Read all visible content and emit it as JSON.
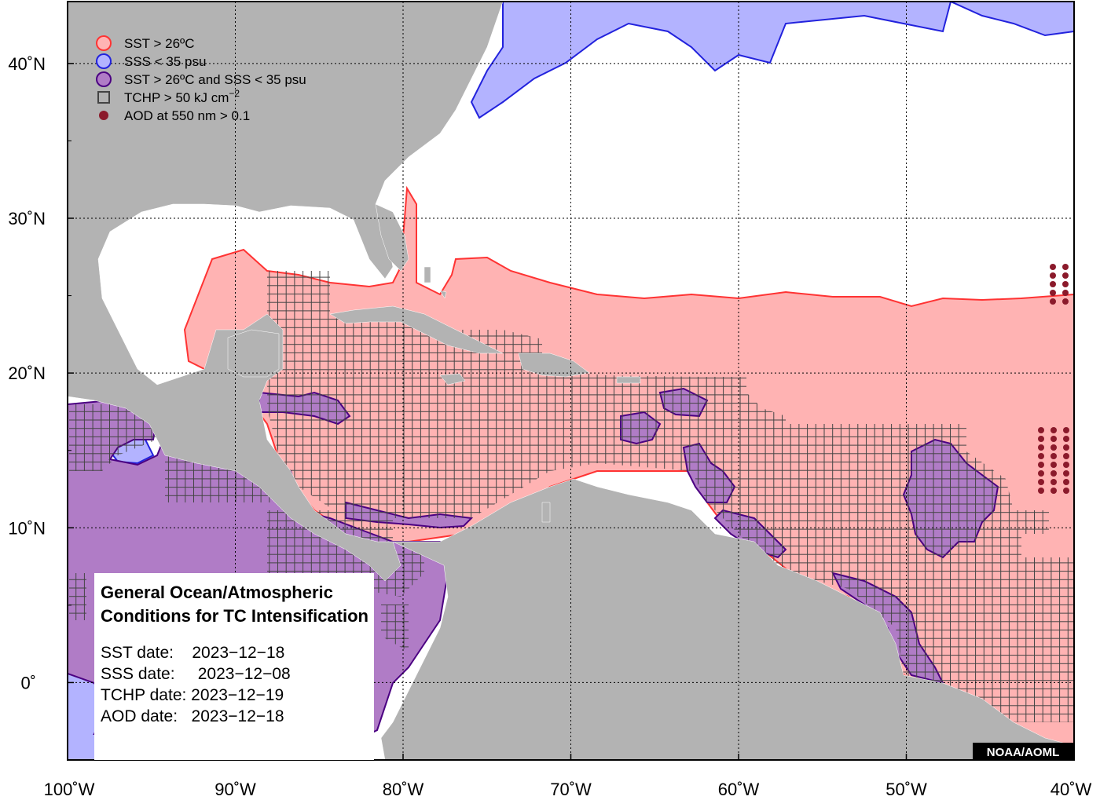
{
  "map": {
    "lon_range": [
      -100,
      -40
    ],
    "lat_range": [
      -5,
      44
    ],
    "x_ticks": [
      {
        "lon": -100,
        "label": "100˚W"
      },
      {
        "lon": -90,
        "label": "90˚W"
      },
      {
        "lon": -80,
        "label": "80˚W"
      },
      {
        "lon": -70,
        "label": "70˚W"
      },
      {
        "lon": -60,
        "label": "60˚W"
      },
      {
        "lon": -50,
        "label": "50˚W"
      },
      {
        "lon": -40,
        "label": "40˚W"
      }
    ],
    "y_ticks": [
      {
        "lat": 40,
        "label": "40˚N"
      },
      {
        "lat": 30,
        "label": "30˚N"
      },
      {
        "lat": 20,
        "label": "20˚N"
      },
      {
        "lat": 10,
        "label": "10˚N"
      },
      {
        "lat": 0,
        "label": "0˚"
      }
    ],
    "grid": true,
    "colors": {
      "land": "#b3b3b3",
      "ocean": "#ffffff",
      "sst_fill": "#ffb3b3",
      "sst_edge": "#ff3333",
      "sss_fill": "#b3b3ff",
      "sss_edge": "#2222dd",
      "both_fill": "#b07cc6",
      "both_edge": "#4b0082",
      "tchp_box": "#444444",
      "aod_dot": "#8b1a2b"
    }
  },
  "legend": {
    "position": "top-left",
    "items": [
      {
        "label": "SST > 26ºC",
        "symbol": "circle",
        "fill": "#ffb3b3",
        "stroke": "#ff3333"
      },
      {
        "label": "SSS < 35 psu",
        "symbol": "circle",
        "fill": "#b3b3ff",
        "stroke": "#2222dd"
      },
      {
        "label": "SST > 26ºC and SSS < 35 psu",
        "symbol": "circle",
        "fill": "#b07cc6",
        "stroke": "#4b0082"
      },
      {
        "label": "TCHP > 50 kJ cm",
        "sup": "−2",
        "symbol": "square",
        "fill": "none",
        "stroke": "#444444"
      },
      {
        "label": "AOD at 550 nm > 0.1",
        "symbol": "dot",
        "fill": "#8b1a2b",
        "stroke": "#8b1a2b"
      }
    ]
  },
  "info_box": {
    "title_line1": "General Ocean/Atmospheric",
    "title_line2": "Conditions for TC Intensification",
    "lines": [
      "SST date:    2023−12−18",
      "SSS date:     2023−12−08",
      "TCHP date: 2023−12−19",
      "AOD date:   2023−12−18"
    ]
  },
  "credit": "NOAA/AOML"
}
